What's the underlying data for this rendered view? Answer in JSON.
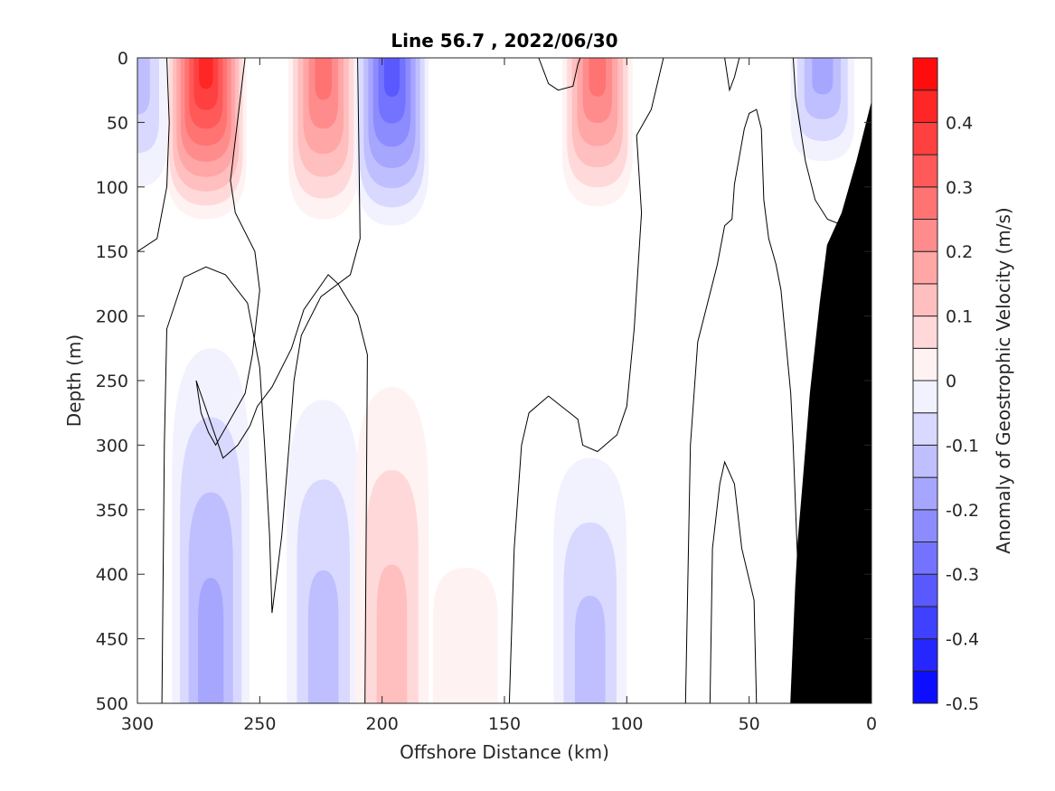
{
  "chart_data": {
    "type": "heatmap",
    "title": "Line 56.7 , 2022/06/30",
    "xlabel": "Offshore Distance (km)",
    "ylabel": "Depth (m)",
    "xlim": [
      300,
      0
    ],
    "ylim": [
      0,
      500
    ],
    "x_reversed": true,
    "y_reversed": true,
    "xticks": [
      "300",
      "250",
      "200",
      "150",
      "100",
      "50",
      "0"
    ],
    "yticks": [
      "0",
      "50",
      "100",
      "150",
      "200",
      "250",
      "300",
      "350",
      "400",
      "450",
      "500"
    ],
    "colorbar": {
      "label": "Anomaly of Geostrophic Velocity (m/s)",
      "range": [
        -0.5,
        0.5
      ],
      "levels": [
        -0.5,
        -0.45,
        -0.4,
        -0.35,
        -0.3,
        -0.25,
        -0.2,
        -0.15,
        -0.1,
        -0.05,
        0,
        0.05,
        0.1,
        0.15,
        0.2,
        0.25,
        0.3,
        0.35,
        0.4,
        0.45,
        0.5
      ],
      "tick_values": [
        0.4,
        0.3,
        0.2,
        0.1,
        0,
        -0.1,
        -0.2,
        -0.3,
        -0.4,
        -0.5
      ],
      "tick_labels": [
        "0.4",
        "0.3",
        "0.2",
        "0.1",
        "0",
        "-0.1",
        "-0.2",
        "-0.3",
        "-0.4",
        "-0.5"
      ],
      "colormap": "blue-white-red"
    },
    "features": [
      {
        "sign": "positive",
        "center_km": 272,
        "depth_range_m": [
          0,
          125
        ],
        "peak": 0.45
      },
      {
        "sign": "positive",
        "center_km": 224,
        "depth_range_m": [
          0,
          125
        ],
        "peak": 0.3
      },
      {
        "sign": "negative",
        "center_km": 196,
        "depth_range_m": [
          0,
          130
        ],
        "peak": -0.35
      },
      {
        "sign": "positive",
        "center_km": 112,
        "depth_range_m": [
          0,
          115
        ],
        "peak": 0.3
      },
      {
        "sign": "negative",
        "center_km": 20,
        "depth_range_m": [
          0,
          80
        ],
        "peak": -0.2
      },
      {
        "sign": "negative",
        "center_km": 300,
        "depth_range_m": [
          0,
          100
        ],
        "peak": -0.15
      },
      {
        "sign": "negative",
        "center_km": 270,
        "depth_range_m": [
          225,
          500
        ],
        "peak": -0.2
      },
      {
        "sign": "negative",
        "center_km": 224,
        "depth_range_m": [
          265,
          500
        ],
        "peak": -0.15
      },
      {
        "sign": "positive",
        "center_km": 196,
        "depth_range_m": [
          255,
          500
        ],
        "peak": 0.15
      },
      {
        "sign": "positive",
        "center_km": 166,
        "depth_range_m": [
          395,
          500
        ],
        "peak": 0.05
      },
      {
        "sign": "negative",
        "center_km": 115,
        "depth_range_m": [
          310,
          500
        ],
        "peak": -0.15
      }
    ],
    "zero_contours_km_depth": [
      [
        [
          300,
          150
        ],
        [
          292,
          140
        ],
        [
          288,
          100
        ],
        [
          287,
          50
        ],
        [
          288,
          0
        ]
      ],
      [
        [
          290,
          500
        ],
        [
          289,
          300
        ],
        [
          288,
          210
        ],
        [
          281,
          170
        ],
        [
          272,
          162
        ],
        [
          264,
          168
        ],
        [
          255,
          190
        ],
        [
          250,
          240
        ],
        [
          248,
          300
        ],
        [
          246,
          370
        ],
        [
          245,
          430
        ],
        [
          241,
          370
        ],
        [
          238,
          300
        ],
        [
          236,
          250
        ],
        [
          233,
          215
        ],
        [
          225,
          185
        ],
        [
          213,
          168
        ],
        [
          209,
          140
        ],
        [
          210,
          0
        ]
      ],
      [
        [
          207,
          500
        ],
        [
          206,
          230
        ],
        [
          210,
          200
        ],
        [
          218,
          175
        ],
        [
          222,
          168
        ],
        [
          232,
          195
        ],
        [
          237,
          225
        ],
        [
          245,
          255
        ],
        [
          251,
          270
        ],
        [
          254,
          285
        ],
        [
          259,
          300
        ],
        [
          265,
          310
        ],
        [
          276,
          250
        ],
        [
          274,
          275
        ],
        [
          271,
          290
        ],
        [
          268,
          300
        ],
        [
          256,
          260
        ],
        [
          253,
          230
        ],
        [
          250,
          180
        ],
        [
          252,
          150
        ],
        [
          260,
          120
        ],
        [
          262,
          95
        ],
        [
          256,
          0
        ]
      ],
      [
        [
          148,
          500
        ],
        [
          146,
          380
        ],
        [
          143,
          300
        ],
        [
          140,
          275
        ],
        [
          132,
          262
        ],
        [
          120,
          280
        ],
        [
          118,
          300
        ],
        [
          112,
          305
        ],
        [
          104,
          292
        ],
        [
          100,
          270
        ],
        [
          97,
          210
        ],
        [
          94,
          120
        ],
        [
          96,
          60
        ],
        [
          90,
          40
        ],
        [
          85,
          0
        ]
      ],
      [
        [
          136,
          0
        ],
        [
          132,
          20
        ],
        [
          128,
          25
        ],
        [
          122,
          22
        ],
        [
          120,
          5
        ],
        [
          119,
          0
        ]
      ],
      [
        [
          76,
          500
        ],
        [
          74,
          300
        ],
        [
          71,
          220
        ],
        [
          67,
          190
        ],
        [
          63,
          160
        ],
        [
          60,
          130
        ],
        [
          57,
          125
        ],
        [
          56,
          98
        ],
        [
          52,
          55
        ],
        [
          50,
          43
        ],
        [
          47,
          40
        ],
        [
          45,
          55
        ],
        [
          44,
          110
        ],
        [
          42,
          140
        ],
        [
          39,
          160
        ],
        [
          37,
          180
        ],
        [
          35,
          220
        ],
        [
          33,
          260
        ],
        [
          32,
          300
        ],
        [
          31,
          350
        ],
        [
          30,
          400
        ],
        [
          29,
          450
        ]
      ],
      [
        [
          66,
          500
        ],
        [
          65,
          380
        ],
        [
          62,
          330
        ],
        [
          60,
          313
        ],
        [
          56,
          330
        ],
        [
          53,
          380
        ],
        [
          48,
          420
        ],
        [
          47,
          500
        ]
      ],
      [
        [
          60,
          0
        ],
        [
          58,
          25
        ],
        [
          56,
          15
        ],
        [
          54,
          0
        ]
      ],
      [
        [
          32,
          0
        ],
        [
          31,
          30
        ],
        [
          27,
          80
        ],
        [
          23,
          110
        ],
        [
          18,
          125
        ],
        [
          14,
          128
        ]
      ]
    ],
    "bathymetry_km_depth": [
      [
        0,
        35
      ],
      [
        6,
        80
      ],
      [
        12,
        120
      ],
      [
        18,
        145
      ],
      [
        21,
        190
      ],
      [
        25,
        260
      ],
      [
        28,
        330
      ],
      [
        30,
        375
      ],
      [
        31,
        410
      ],
      [
        33,
        500
      ],
      [
        0,
        500
      ]
    ]
  }
}
